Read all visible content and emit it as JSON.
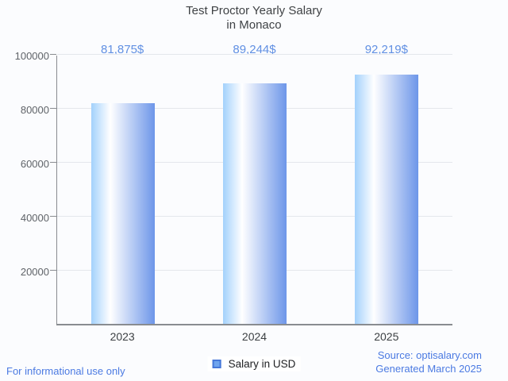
{
  "title": {
    "line1": "Test Proctor Yearly Salary",
    "line2": "in Monaco"
  },
  "chart_data": {
    "type": "bar",
    "title": "Test Proctor Yearly Salary in Monaco",
    "categories": [
      "2023",
      "2024",
      "2025"
    ],
    "values": [
      81875,
      89244,
      92219
    ],
    "value_labels": [
      "81,875$",
      "89,244$",
      "92,219$"
    ],
    "series_name": "Salary in USD",
    "xlabel": "",
    "ylabel": "",
    "ylim": [
      0,
      100000
    ],
    "yticks": [
      20000,
      40000,
      60000,
      80000,
      100000
    ],
    "ytick_labels": [
      "20000",
      "40000",
      "60000",
      "80000",
      "100000"
    ],
    "grid": true,
    "legend": {
      "label": "Salary in USD",
      "position": "bottom"
    }
  },
  "footer": {
    "left": "For informational use only",
    "source": "Source: optisalary.com",
    "generated": "Generated March 2025"
  },
  "colors": {
    "background": "#fbfcfe",
    "bar_gradient_left": "#a3d1fc",
    "bar_gradient_mid": "#ffffff",
    "bar_gradient_right": "#6d96e9",
    "value_label_blue": "#6190e3",
    "footer_link_blue": "#4b7ae2",
    "legend_swatch_fill": "#6ea4ee",
    "legend_swatch_border": "#4577d9",
    "axis_gray": "#898c90",
    "gridline_gray": "#e4e7ec",
    "title_gray": "#3f4245"
  }
}
